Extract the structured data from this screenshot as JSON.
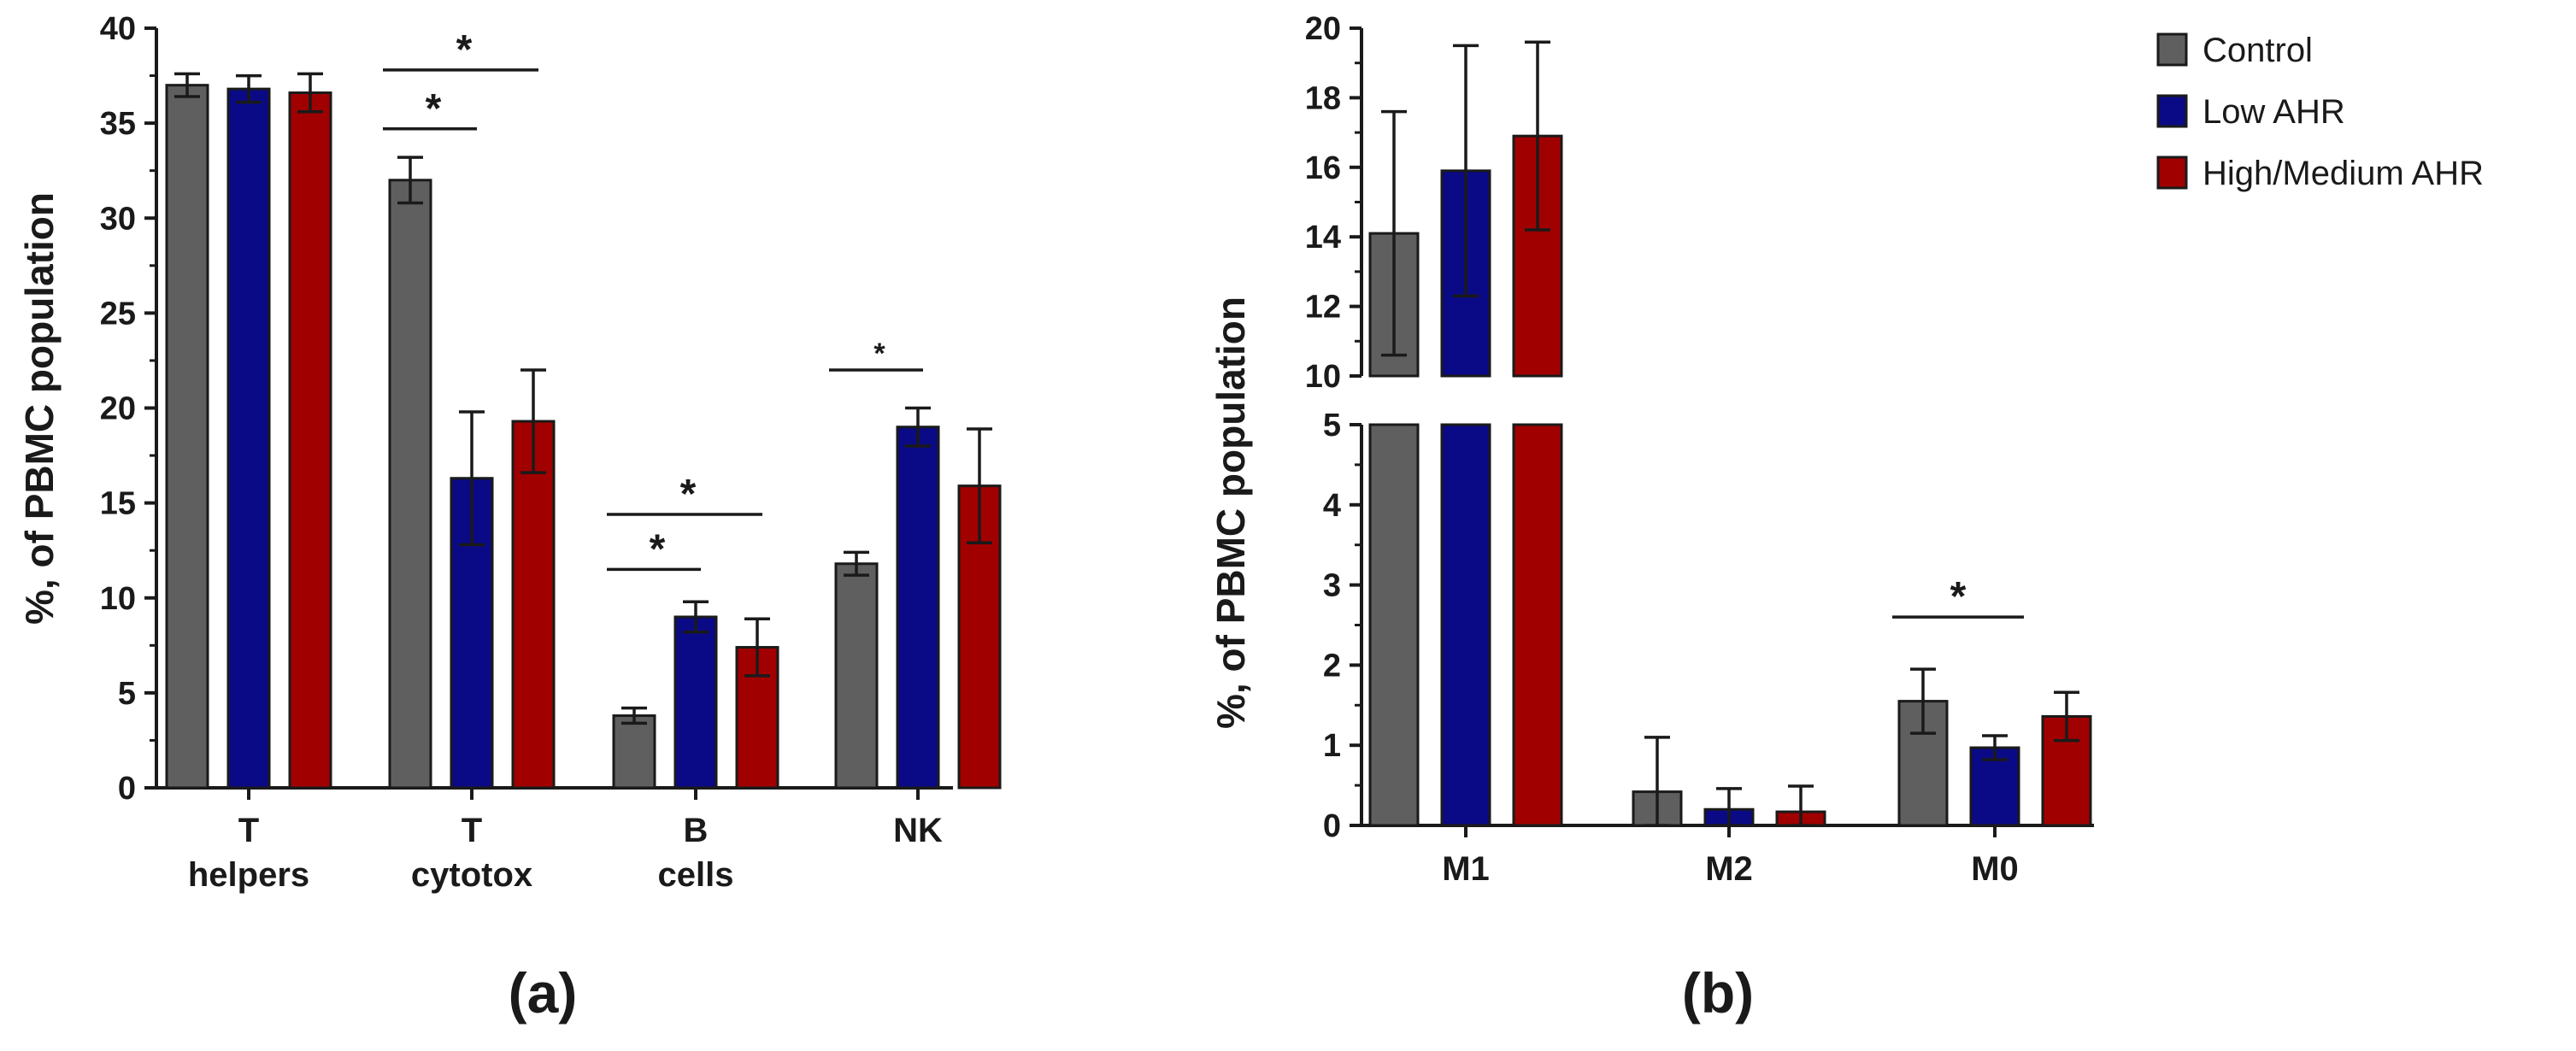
{
  "colors": {
    "control": "#5f5f5f",
    "low": "#0a0a86",
    "high": "#a10000",
    "axis": "#1a1a1a"
  },
  "legend": [
    {
      "key": "control",
      "label": "Control"
    },
    {
      "key": "low",
      "label": "Low AHR"
    },
    {
      "key": "high",
      "label": "High/Medium AHR"
    }
  ],
  "panels": {
    "a": "(a)",
    "b": "(b)"
  },
  "chart_data": [
    {
      "type": "bar",
      "id": "a",
      "title": "",
      "ylabel": "%, of PBMC population",
      "ylim": [
        0,
        40
      ],
      "yticks": [
        0,
        5,
        10,
        15,
        20,
        25,
        30,
        35,
        40
      ],
      "categories": [
        [
          "T",
          "helpers"
        ],
        [
          "T",
          "cytotox"
        ],
        [
          "B",
          "cells"
        ],
        [
          "NK"
        ]
      ],
      "series": [
        {
          "name": "Control",
          "key": "control",
          "values": [
            37.0,
            32.0,
            3.8,
            11.8
          ],
          "err": [
            0.6,
            1.2,
            0.4,
            0.6
          ]
        },
        {
          "name": "Low AHR",
          "key": "low",
          "values": [
            36.8,
            16.3,
            9.0,
            19.0
          ],
          "err": [
            0.7,
            3.5,
            0.8,
            1.0
          ]
        },
        {
          "name": "High/Medium AHR",
          "key": "high",
          "values": [
            36.6,
            19.3,
            7.4,
            15.9
          ],
          "err": [
            1.0,
            2.7,
            1.5,
            3.0
          ]
        }
      ],
      "significance": [
        {
          "category": 1,
          "from": 0,
          "to": 1,
          "y": 34.7,
          "label": "*"
        },
        {
          "category": 1,
          "from": 0,
          "to": 2,
          "y": 37.8,
          "label": "*"
        },
        {
          "category": 2,
          "from": 0,
          "to": 1,
          "y": 11.5,
          "label": "*"
        },
        {
          "category": 2,
          "from": 0,
          "to": 2,
          "y": 14.4,
          "label": "*"
        },
        {
          "category": 3,
          "from": 0,
          "to": 1,
          "y": 22.0,
          "label": "*",
          "small": true
        }
      ]
    },
    {
      "type": "bar",
      "id": "b",
      "title": "",
      "ylabel": "%, of PBMC population",
      "broken_axis": true,
      "ylim_lower": [
        0,
        5
      ],
      "ylim_upper": [
        10,
        20
      ],
      "yticks_lower": [
        0,
        1,
        2,
        3,
        4,
        5
      ],
      "yticks_upper": [
        10,
        12,
        14,
        16,
        18,
        20
      ],
      "categories": [
        [
          "M1"
        ],
        [
          "M2"
        ],
        [
          "M0"
        ]
      ],
      "series": [
        {
          "name": "Control",
          "key": "control",
          "values": [
            14.1,
            0.42,
            1.55
          ],
          "err": [
            3.5,
            0.68,
            0.4
          ]
        },
        {
          "name": "Low AHR",
          "key": "low",
          "values": [
            15.9,
            0.2,
            0.97
          ],
          "err": [
            3.6,
            0.26,
            0.15
          ]
        },
        {
          "name": "High/Medium AHR",
          "key": "high",
          "values": [
            16.9,
            0.17,
            1.36
          ],
          "err": [
            2.7,
            0.32,
            0.3
          ]
        }
      ],
      "significance": [
        {
          "category": 2,
          "from": 0,
          "to": 1,
          "y": 2.6,
          "label": "*"
        }
      ]
    }
  ]
}
